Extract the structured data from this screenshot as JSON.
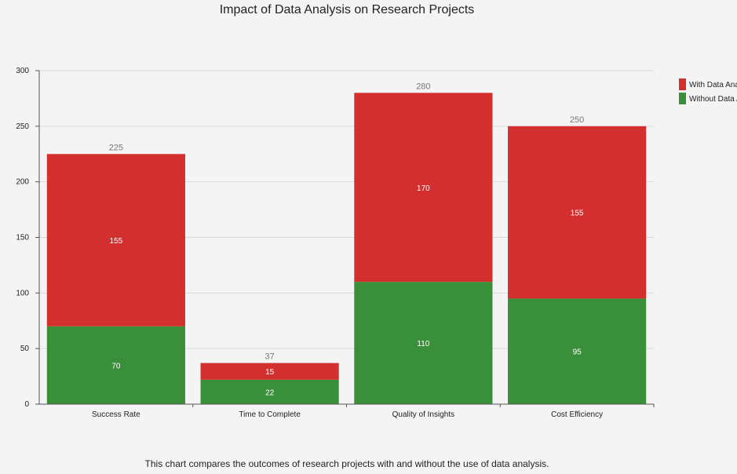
{
  "title": "Impact of Data Analysis on Research Projects",
  "caption": "This chart compares the outcomes of research projects with and without the use of data analysis.",
  "chart_data": {
    "type": "bar",
    "stacked": true,
    "title": "Impact of Data Analysis on Research Projects",
    "categories": [
      "Success Rate",
      "Time to Complete",
      "Quality of Insights",
      "Cost Efficiency"
    ],
    "series": [
      {
        "name": "Without Data Analysis",
        "values": [
          70,
          22,
          110,
          95
        ],
        "color": "#3a8f3a"
      },
      {
        "name": "With Data Analysis",
        "values": [
          155,
          15,
          170,
          155
        ],
        "color": "#d32f2f"
      }
    ],
    "totals": [
      225,
      37,
      280,
      250
    ],
    "yticks": [
      0,
      50,
      100,
      150,
      200,
      250,
      300
    ],
    "ylim": [
      0,
      300
    ],
    "grid": true,
    "legend_position": "top-right",
    "legend_entries": [
      "With Data Analysis",
      "Without Data Analysis"
    ]
  }
}
